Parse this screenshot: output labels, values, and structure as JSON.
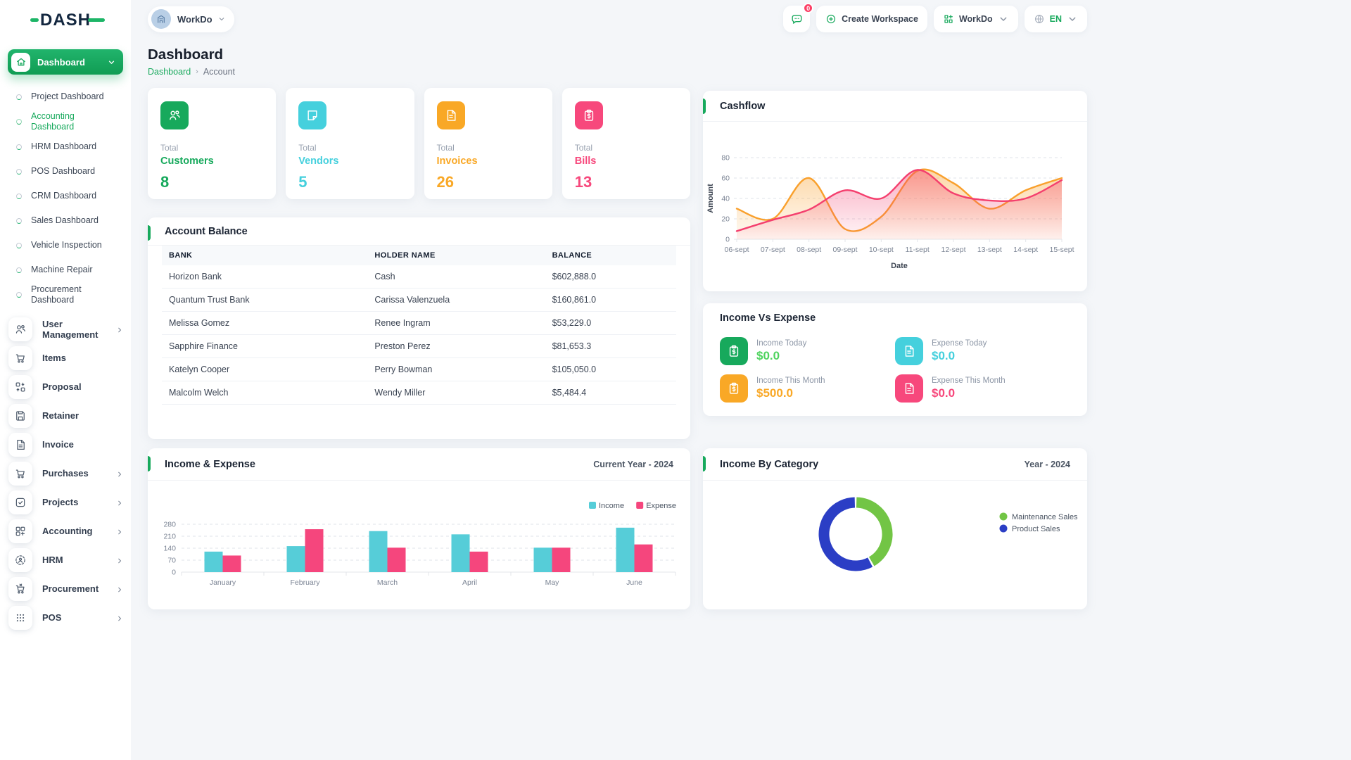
{
  "theme": {
    "primary_green": "#17a95c",
    "cyan": "#45d0dd",
    "orange": "#f9a826",
    "pink": "#f7487c",
    "page_bg": "#f4f6f9"
  },
  "brand": {
    "logo_text": "DASH"
  },
  "header": {
    "workspace_pill": {
      "label": "WorkDo",
      "icon": "building-icon"
    },
    "notification": {
      "icon": "chat-icon",
      "badge": "0"
    },
    "create_workspace_label": "Create Workspace",
    "workdo_menu_label": "WorkDo",
    "language": "EN"
  },
  "sidebar": {
    "dashboard_group": {
      "label": "Dashboard",
      "icon": "home-icon"
    },
    "sub_items": [
      {
        "label": "Project Dashboard",
        "active": false
      },
      {
        "label": "Accounting Dashboard",
        "active": true
      },
      {
        "label": "HRM Dashboard",
        "active": false
      },
      {
        "label": "POS Dashboard",
        "active": false
      },
      {
        "label": "CRM Dashboard",
        "active": false
      },
      {
        "label": "Sales Dashboard",
        "active": false
      },
      {
        "label": "Vehicle Inspection",
        "active": false
      },
      {
        "label": "Machine Repair",
        "active": false
      },
      {
        "label": "Procurement Dashboard",
        "active": false
      }
    ],
    "items": [
      {
        "label": "User Management",
        "icon": "users-icon",
        "chevron": true
      },
      {
        "label": "Items",
        "icon": "cart-icon",
        "chevron": false
      },
      {
        "label": "Proposal",
        "icon": "proposal-icon",
        "chevron": false
      },
      {
        "label": "Retainer",
        "icon": "retainer-icon",
        "chevron": false
      },
      {
        "label": "Invoice",
        "icon": "invoice-icon",
        "chevron": false
      },
      {
        "label": "Purchases",
        "icon": "purchases-icon",
        "chevron": true
      },
      {
        "label": "Projects",
        "icon": "projects-icon",
        "chevron": true
      },
      {
        "label": "Accounting",
        "icon": "accounting-icon",
        "chevron": true
      },
      {
        "label": "HRM",
        "icon": "hrm-icon",
        "chevron": true
      },
      {
        "label": "Procurement",
        "icon": "procurement-icon",
        "chevron": true
      },
      {
        "label": "POS",
        "icon": "pos-icon",
        "chevron": true
      }
    ]
  },
  "page": {
    "title": "Dashboard",
    "breadcrumb": [
      "Dashboard",
      "Account"
    ]
  },
  "stat_cards": [
    {
      "prefix": "Total",
      "label": "Customers",
      "value": "8",
      "color": "#17a95c",
      "icon": "customers-icon"
    },
    {
      "prefix": "Total",
      "label": "Vendors",
      "value": "5",
      "color": "#45d0dd",
      "icon": "vendors-icon"
    },
    {
      "prefix": "Total",
      "label": "Invoices",
      "value": "26",
      "color": "#f9a826",
      "icon": "invoices-icon"
    },
    {
      "prefix": "Total",
      "label": "Bills",
      "value": "13",
      "color": "#f7487c",
      "icon": "bills-icon"
    }
  ],
  "account_balance": {
    "title": "Account Balance",
    "columns": [
      "BANK",
      "HOLDER NAME",
      "BALANCE"
    ],
    "rows": [
      [
        "Horizon Bank",
        "Cash",
        "$602,888.0"
      ],
      [
        "Quantum Trust Bank",
        "Carissa Valenzuela",
        "$160,861.0"
      ],
      [
        "Melissa Gomez",
        "Renee Ingram",
        "$53,229.0"
      ],
      [
        "Sapphire Finance",
        "Preston Perez",
        "$81,653.3"
      ],
      [
        "Katelyn Cooper",
        "Perry Bowman",
        "$105,050.0"
      ],
      [
        "Malcolm Welch",
        "Wendy Miller",
        "$5,484.4"
      ]
    ]
  },
  "income_vs_expense": {
    "title": "Income Vs Expense",
    "tiles": [
      {
        "label": "Income Today",
        "value": "$0.0",
        "value_color": "#4fd35f",
        "icon": "clipboard-dollar-icon",
        "icon_bg": "#17a95c"
      },
      {
        "label": "Expense Today",
        "value": "$0.0",
        "value_color": "#45d0dd",
        "icon": "expense-file-icon",
        "icon_bg": "#45d0dd"
      },
      {
        "label": "Income This Month",
        "value": "$500.0",
        "value_color": "#f9a826",
        "icon": "clipboard-dollar-icon",
        "icon_bg": "#f9a826"
      },
      {
        "label": "Expense This Month",
        "value": "$0.0",
        "value_color": "#f7487c",
        "icon": "expense-file-icon",
        "icon_bg": "#f7487c"
      }
    ]
  },
  "chart_data": [
    {
      "id": "cashflow",
      "type": "area",
      "title": "Cashflow",
      "xlabel": "Date",
      "ylabel": "Amount",
      "ylim": [
        0,
        80
      ],
      "yticks": [
        0,
        20,
        40,
        60,
        80
      ],
      "grid": "dashed-horizontal",
      "legend": false,
      "categories": [
        "06-sept",
        "07-sept",
        "08-sept",
        "09-sept",
        "10-sept",
        "11-sept",
        "12-sept",
        "13-sept",
        "14-sept",
        "15-sept"
      ],
      "series": [
        {
          "name": "series_1",
          "color": "#f9a02c",
          "values": [
            30,
            20,
            60,
            10,
            22,
            67,
            55,
            30,
            48,
            60
          ]
        },
        {
          "name": "series_2",
          "color": "#f43f6e",
          "values": [
            8,
            19,
            29,
            48,
            40,
            68,
            45,
            38,
            40,
            58
          ]
        }
      ]
    },
    {
      "id": "income_expense",
      "type": "bar",
      "title": "Income & Expense",
      "period_label": "Current Year - 2024",
      "ylim": [
        0,
        280
      ],
      "yticks": [
        0,
        70,
        140,
        210,
        280
      ],
      "legend_position": "top-right",
      "categories": [
        "January",
        "February",
        "March",
        "April",
        "May",
        "June"
      ],
      "series": [
        {
          "name": "Income",
          "color": "#56cdd8",
          "values": [
            120,
            152,
            240,
            221,
            143,
            260
          ]
        },
        {
          "name": "Expense",
          "color": "#f5467d",
          "values": [
            97,
            251,
            143,
            120,
            143,
            162
          ]
        }
      ]
    },
    {
      "id": "income_by_category",
      "type": "pie",
      "title": "Income By Category",
      "period_label": "Year - 2024",
      "legend_position": "right",
      "slices": [
        {
          "name": "Maintenance Sales",
          "color": "#72c545",
          "value": 42
        },
        {
          "name": "Product Sales",
          "color": "#2b3ec5",
          "value": 58
        }
      ]
    }
  ]
}
